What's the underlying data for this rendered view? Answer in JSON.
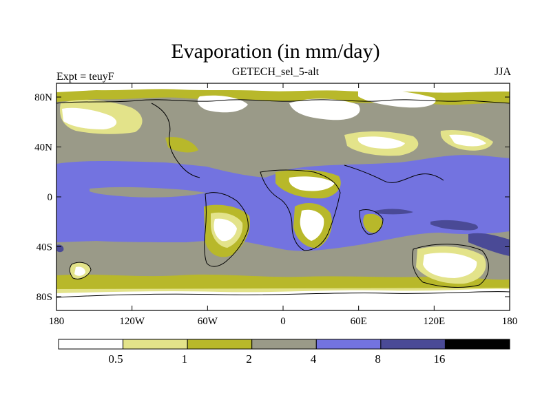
{
  "header": {
    "title": "Evaporation (in mm/day)",
    "subtitle": "GETECH_sel_5-alt",
    "left_label": "Expt = teuyF",
    "right_label": "JJA"
  },
  "map": {
    "lat_ticks": [
      "80N",
      "40N",
      "0",
      "40S",
      "80S"
    ],
    "lon_ticks": [
      "180",
      "120W",
      "60W",
      "0",
      "60E",
      "120E",
      "180"
    ],
    "lat_range": [
      -90,
      90
    ],
    "lon_range": [
      -180,
      180
    ]
  },
  "colorbar": {
    "labels": [
      "0.5",
      "1",
      "2",
      "4",
      "8",
      "16"
    ],
    "colors": [
      "#ffffff",
      "#e3e38a",
      "#b8b82a",
      "#9a9a88",
      "#7373e0",
      "#4a4a96",
      "#000000"
    ]
  },
  "colors": {
    "white": "#ffffff",
    "light_yellow": "#e3e38a",
    "olive": "#b8b82a",
    "gray": "#9a9a88",
    "blue": "#7373e0",
    "dark_blue": "#4a4a96"
  }
}
